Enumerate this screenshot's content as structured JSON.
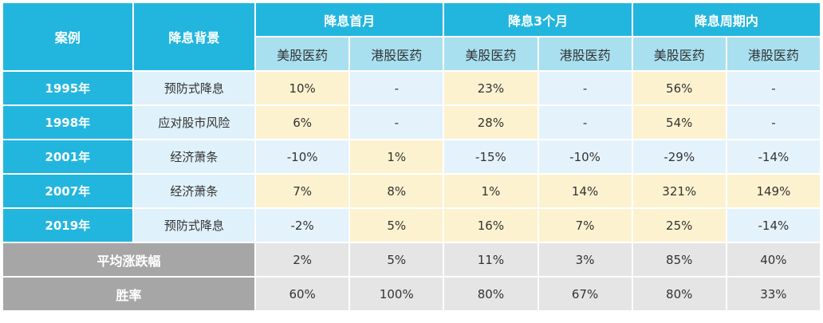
{
  "header": {
    "case": "案例",
    "background": "降息背景",
    "groups": [
      "降息首月",
      "降息3个月",
      "降息周期内"
    ],
    "subs": [
      "美股医药",
      "港股医药",
      "美股医药",
      "港股医药",
      "美股医药",
      "港股医药"
    ]
  },
  "rows": [
    {
      "year": "1995年",
      "background": "预防式降息",
      "values": [
        "10%",
        "-",
        "23%",
        "-",
        "56%",
        "-"
      ]
    },
    {
      "year": "1998年",
      "background": "应对股市风险",
      "values": [
        "6%",
        "-",
        "28%",
        "-",
        "54%",
        "-"
      ]
    },
    {
      "year": "2001年",
      "background": "经济萧条",
      "values": [
        "-10%",
        "1%",
        "-15%",
        "-10%",
        "-29%",
        "-14%"
      ]
    },
    {
      "year": "2007年",
      "background": "经济萧条",
      "values": [
        "7%",
        "8%",
        "1%",
        "14%",
        "321%",
        "149%"
      ]
    },
    {
      "year": "2019年",
      "background": "预防式降息",
      "values": [
        "-2%",
        "5%",
        "16%",
        "7%",
        "25%",
        "-14%"
      ]
    }
  ],
  "summary": [
    {
      "label": "平均涨跌幅",
      "values": [
        "2%",
        "5%",
        "11%",
        "3%",
        "85%",
        "40%"
      ]
    },
    {
      "label": "胜率",
      "values": [
        "60%",
        "100%",
        "80%",
        "67%",
        "80%",
        "33%"
      ]
    }
  ],
  "colors": {
    "header": "#22b6df",
    "subheader": "#a8e0f0",
    "highlight": "#fdf2cf",
    "cell": "#e4f2fb",
    "summary_label": "#a6a6a6",
    "summary_cell": "#e5e5e5"
  }
}
